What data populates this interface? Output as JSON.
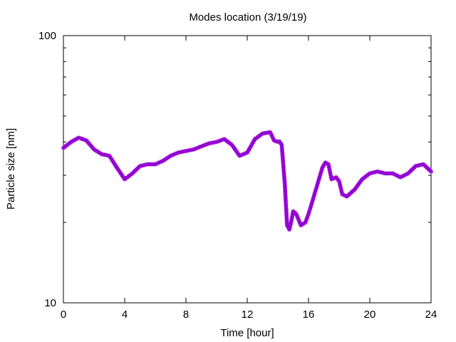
{
  "chart_data": {
    "type": "scatter",
    "title": "Modes location (3/19/19)",
    "xlabel": "Time [hour]",
    "ylabel": "Particle size [nm]",
    "xlim": [
      0,
      24
    ],
    "ylim": [
      10,
      100
    ],
    "y_scale": "log",
    "x_ticks": [
      0,
      4,
      8,
      12,
      16,
      20,
      24
    ],
    "y_ticks": [
      10,
      100
    ],
    "grid": false,
    "marker_color": "#9400d3",
    "marker": "asterisk",
    "series": [
      {
        "values": [
          [
            0.0,
            38.0
          ],
          [
            0.5,
            40.0
          ],
          [
            1.0,
            41.5
          ],
          [
            1.5,
            40.5
          ],
          [
            2.0,
            37.5
          ],
          [
            2.5,
            36.0
          ],
          [
            3.0,
            35.5
          ],
          [
            3.5,
            32.0
          ],
          [
            4.0,
            29.0
          ],
          [
            4.5,
            30.5
          ],
          [
            5.0,
            32.5
          ],
          [
            5.5,
            33.0
          ],
          [
            6.0,
            33.0
          ],
          [
            6.5,
            34.0
          ],
          [
            7.0,
            35.5
          ],
          [
            7.5,
            36.5
          ],
          [
            8.0,
            37.0
          ],
          [
            8.5,
            37.5
          ],
          [
            9.0,
            38.5
          ],
          [
            9.5,
            39.5
          ],
          [
            10.0,
            40.0
          ],
          [
            10.5,
            41.0
          ],
          [
            11.0,
            39.0
          ],
          [
            11.5,
            35.5
          ],
          [
            12.0,
            36.5
          ],
          [
            12.5,
            41.0
          ],
          [
            13.0,
            43.0
          ],
          [
            13.5,
            43.5
          ],
          [
            13.75,
            40.5
          ],
          [
            14.0,
            40.0
          ],
          [
            14.1,
            40.2
          ],
          [
            14.25,
            39.0
          ],
          [
            14.35,
            33.0
          ],
          [
            14.45,
            28.0
          ],
          [
            14.6,
            19.5
          ],
          [
            14.75,
            18.8
          ],
          [
            14.9,
            20.5
          ],
          [
            15.0,
            22.0
          ],
          [
            15.2,
            21.5
          ],
          [
            15.5,
            19.5
          ],
          [
            15.8,
            20.0
          ],
          [
            16.0,
            21.5
          ],
          [
            16.3,
            24.5
          ],
          [
            16.6,
            28.0
          ],
          [
            16.9,
            32.0
          ],
          [
            17.1,
            33.5
          ],
          [
            17.3,
            33.0
          ],
          [
            17.5,
            29.0
          ],
          [
            17.8,
            29.5
          ],
          [
            18.0,
            28.5
          ],
          [
            18.2,
            25.5
          ],
          [
            18.5,
            25.0
          ],
          [
            19.0,
            26.5
          ],
          [
            19.5,
            29.0
          ],
          [
            20.0,
            30.5
          ],
          [
            20.5,
            31.0
          ],
          [
            21.0,
            30.5
          ],
          [
            21.5,
            30.5
          ],
          [
            22.0,
            29.5
          ],
          [
            22.5,
            30.5
          ],
          [
            23.0,
            32.5
          ],
          [
            23.5,
            33.0
          ],
          [
            24.0,
            31.0
          ]
        ]
      }
    ]
  }
}
